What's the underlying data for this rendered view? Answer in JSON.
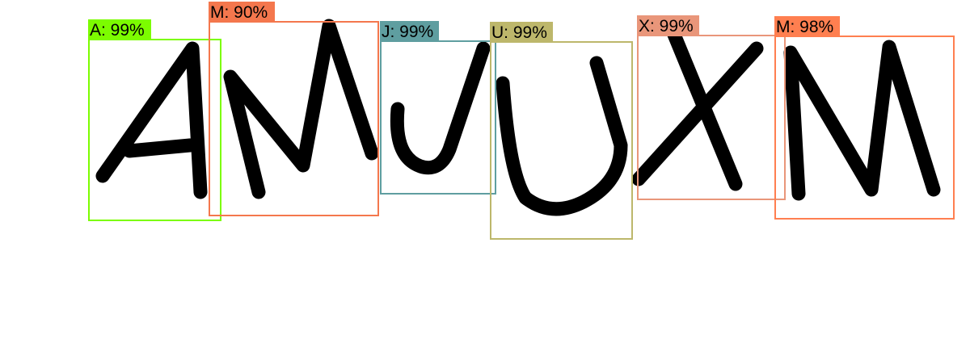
{
  "detections": [
    {
      "letter": "A",
      "label": "A: 99%",
      "color": "#7CFC00"
    },
    {
      "letter": "M",
      "label": "M: 90%",
      "color": "#F4774D"
    },
    {
      "letter": "J",
      "label": "J: 99%",
      "color": "#5F9EA0"
    },
    {
      "letter": "U",
      "label": "U: 99%",
      "color": "#BDB76B"
    },
    {
      "letter": "X",
      "label": "X: 99%",
      "color": "#E9967A"
    },
    {
      "letter": "M",
      "label": "M: 98%",
      "color": "#FF7F50"
    }
  ]
}
